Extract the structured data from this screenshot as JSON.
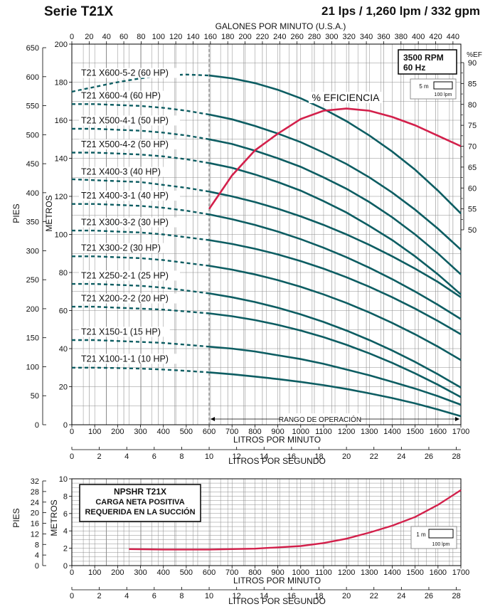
{
  "header": {
    "series": "Serie T21X",
    "rating": "21 lps / 1,260 lpm / 332 gpm"
  },
  "colors": {
    "curve": "#0d5d62",
    "efficiency": "#d3204b",
    "grid": "#8c8c8c"
  },
  "chart_data": [
    {
      "type": "line",
      "name": "performance",
      "top_axis_label": "GALONES POR MINUTO (U.S.A.)",
      "top_ticks": [
        "0",
        "20",
        "40",
        "60",
        "80",
        "100",
        "120",
        "140",
        "160",
        "180",
        "200",
        "220",
        "240",
        "260",
        "280",
        "300",
        "320",
        "340",
        "360",
        "380",
        "400",
        "420",
        "440"
      ],
      "xlabel": "LITROS POR MINUTO",
      "x_ticks": [
        "0",
        "100",
        "200",
        "300",
        "400",
        "500",
        "600",
        "700",
        "800",
        "900",
        "1000",
        "1100",
        "1200",
        "1300",
        "1400",
        "1500",
        "1600",
        "1700"
      ],
      "xlabel2": "LITROS POR SEGUNDO",
      "x2_ticks": [
        "0",
        "2",
        "4",
        "6",
        "8",
        "10",
        "12",
        "14",
        "16",
        "18",
        "20",
        "22",
        "24",
        "26",
        "28"
      ],
      "ylabel_left": "PIES",
      "y_pies_ticks": [
        "0",
        "50",
        "100",
        "150",
        "200",
        "250",
        "300",
        "350",
        "400",
        "450",
        "500",
        "550",
        "600",
        "650"
      ],
      "ylabel_metros": "METROS",
      "y_metros_ticks": [
        "0",
        "20",
        "40",
        "60",
        "80",
        "100",
        "120",
        "140",
        "160",
        "180",
        "200"
      ],
      "eff_label": "%EF",
      "eff_ticks": [
        "50",
        "55",
        "60",
        "65",
        "70",
        "75",
        "80",
        "85",
        "90"
      ],
      "xlim": [
        0,
        1700
      ],
      "ylim": [
        0,
        200
      ],
      "operating_range": {
        "label": "RANGO DE OPERACIÓN",
        "from": 600,
        "to": 1700
      },
      "rpm_box": {
        "line1": "3500 RPM",
        "line2": "60 Hz"
      },
      "scale_box": {
        "top": "5 m",
        "bottom": "100 lpm"
      },
      "efficiency_label": "% EFICIENCIA",
      "series": [
        {
          "name": "T21 X600-5-2 (60 HP)",
          "x": [
            0,
            100,
            200,
            300,
            400,
            500,
            600,
            700,
            800,
            900,
            1000,
            1100,
            1200,
            1300,
            1400,
            1500,
            1600,
            1700
          ],
          "values": [
            175,
            177.5,
            180,
            182,
            183.5,
            184,
            183.5,
            182,
            179.5,
            176,
            171.5,
            166,
            159.5,
            152,
            143.5,
            134,
            123,
            111
          ]
        },
        {
          "name": "T21 X600-4 (60 HP)",
          "x": [
            0,
            100,
            200,
            300,
            400,
            500,
            600,
            700,
            800,
            900,
            1000,
            1100,
            1200,
            1300,
            1400,
            1500,
            1600,
            1700
          ],
          "values": [
            168.5,
            168.5,
            168,
            167.5,
            166.5,
            165,
            163,
            160.5,
            157,
            153,
            148.5,
            143,
            137,
            130,
            122,
            113,
            103,
            92
          ]
        },
        {
          "name": "T21 X500-4-1 (50 HP)",
          "x": [
            0,
            100,
            200,
            300,
            400,
            500,
            600,
            700,
            800,
            900,
            1000,
            1100,
            1200,
            1300,
            1400,
            1500,
            1600,
            1700
          ],
          "values": [
            155.5,
            155.5,
            155,
            154.5,
            153.5,
            152,
            150,
            147.5,
            144,
            140,
            135.5,
            130,
            124,
            117,
            109,
            100,
            90,
            79
          ]
        },
        {
          "name": "T21 X500-4-2 (50 HP)",
          "x": [
            0,
            100,
            200,
            300,
            400,
            500,
            600,
            700,
            800,
            900,
            1000,
            1100,
            1200,
            1300,
            1400,
            1500,
            1600,
            1700
          ],
          "values": [
            143,
            143,
            142.5,
            142,
            141,
            139.5,
            137.5,
            135,
            131.5,
            127.5,
            123,
            117.5,
            111.5,
            104.5,
            97,
            88.5,
            79,
            68.5
          ]
        },
        {
          "name": "T21 X400-3 (40 HP)",
          "x": [
            0,
            100,
            200,
            300,
            400,
            500,
            600,
            700,
            800,
            900,
            1000,
            1100,
            1200,
            1300,
            1400,
            1500,
            1600,
            1700
          ],
          "values": [
            129,
            128.5,
            128,
            127.5,
            126,
            124.5,
            122.5,
            120,
            117,
            113.5,
            109.5,
            105,
            100,
            94.5,
            88.5,
            82,
            75,
            67
          ]
        },
        {
          "name": "T21 X400-3-1 (40 HP)",
          "x": [
            0,
            100,
            200,
            300,
            400,
            500,
            600,
            700,
            800,
            900,
            1000,
            1100,
            1200,
            1300,
            1400,
            1500,
            1600,
            1700
          ],
          "values": [
            116,
            116,
            115.5,
            115,
            114,
            112.5,
            110.5,
            108,
            105,
            101.5,
            97.5,
            93,
            88,
            82.5,
            76.5,
            70,
            63,
            55.5
          ]
        },
        {
          "name": "T21 X300-3-2 (30 HP)",
          "x": [
            0,
            100,
            200,
            300,
            400,
            500,
            600,
            700,
            800,
            900,
            1000,
            1100,
            1200,
            1300,
            1400,
            1500,
            1600,
            1700
          ],
          "values": [
            102,
            102,
            101.5,
            101,
            100,
            98.5,
            97,
            95,
            92.5,
            89.5,
            86,
            82,
            77.5,
            72.5,
            67,
            61,
            54.5,
            47.5
          ]
        },
        {
          "name": "T21 X300-2 (30 HP)",
          "x": [
            0,
            100,
            200,
            300,
            400,
            500,
            600,
            700,
            800,
            900,
            1000,
            1100,
            1200,
            1300,
            1400,
            1500,
            1600,
            1700
          ],
          "values": [
            88.5,
            88.5,
            88,
            87.5,
            86.5,
            85,
            83.5,
            81.5,
            79,
            76,
            72.5,
            68.5,
            64,
            59,
            53.5,
            47.5,
            41,
            34
          ]
        },
        {
          "name": "T21 X250-2-1 (25 HP)",
          "x": [
            0,
            100,
            200,
            300,
            400,
            500,
            600,
            700,
            800,
            900,
            1000,
            1100,
            1200,
            1300,
            1400,
            1500,
            1600,
            1700
          ],
          "values": [
            74,
            74,
            73.5,
            73,
            72,
            70.5,
            69,
            67,
            64.5,
            61.5,
            58,
            54,
            49.5,
            44.5,
            39,
            33,
            26.5,
            19.5
          ]
        },
        {
          "name": "T21 X200-2-2 (20 HP)",
          "x": [
            0,
            100,
            200,
            300,
            400,
            500,
            600,
            700,
            800,
            900,
            1000,
            1100,
            1200,
            1300,
            1400,
            1500,
            1600,
            1700
          ],
          "values": [
            62,
            62,
            61.5,
            61,
            60.5,
            59.5,
            58.5,
            57,
            55,
            52.5,
            49.5,
            46,
            42,
            37.5,
            32.5,
            27,
            21,
            14.5
          ]
        },
        {
          "name": "T21 X150-1 (15 HP)",
          "x": [
            0,
            100,
            200,
            300,
            400,
            500,
            600,
            700,
            800,
            900,
            1000,
            1100,
            1200,
            1300,
            1400,
            1500,
            1600,
            1700
          ],
          "values": [
            44.5,
            44.5,
            44,
            43.5,
            43,
            42,
            41,
            40,
            38.5,
            36.5,
            34.5,
            32,
            29,
            26,
            22.5,
            19,
            15,
            10.5
          ]
        },
        {
          "name": "T21 X100-1-1 (10 HP)",
          "x": [
            0,
            100,
            200,
            300,
            400,
            500,
            600,
            700,
            800,
            900,
            1000,
            1100,
            1200,
            1300,
            1400,
            1500,
            1600,
            1700
          ],
          "values": [
            30,
            30,
            29.8,
            29.5,
            29,
            28.3,
            27.5,
            26.5,
            25.3,
            24,
            22.5,
            20.8,
            18.8,
            16.5,
            14,
            11.2,
            8,
            4.5
          ]
        }
      ],
      "efficiency": {
        "x": [
          600,
          700,
          800,
          900,
          1000,
          1100,
          1200,
          1300,
          1400,
          1500,
          1600,
          1700
        ],
        "values": [
          55,
          63,
          69,
          73,
          76.5,
          78.5,
          79,
          78.5,
          77,
          75,
          72.5,
          70
        ]
      }
    },
    {
      "type": "line",
      "name": "npshr",
      "box_title": "NPSHR T21X",
      "box_line1": "CARGA NETA POSITIVA",
      "box_line2": "REQUERIDA EN LA SUCCIÓN",
      "ylabel_left": "PIES",
      "y_pies_ticks": [
        "0",
        "4",
        "8",
        "12",
        "16",
        "20",
        "24",
        "28",
        "32"
      ],
      "ylabel_metros": "METROS",
      "y_metros_ticks": [
        "0",
        "2",
        "4",
        "6",
        "8",
        "10"
      ],
      "xlabel": "LITROS POR MINUTO",
      "x_ticks": [
        "0",
        "100",
        "200",
        "300",
        "400",
        "500",
        "600",
        "700",
        "800",
        "900",
        "1000",
        "1100",
        "1200",
        "1300",
        "1400",
        "1500",
        "1600",
        "1700"
      ],
      "xlabel2": "LITROS POR SEGUNDO",
      "x2_ticks": [
        "0",
        "2",
        "4",
        "6",
        "8",
        "10",
        "12",
        "14",
        "16",
        "18",
        "20",
        "22",
        "24",
        "26",
        "28"
      ],
      "xlim": [
        0,
        1700
      ],
      "ylim": [
        0,
        10
      ],
      "scale_box": {
        "top": "1 m",
        "bottom": "100 lpm"
      },
      "series": [
        {
          "name": "NPSHR",
          "x": [
            250,
            400,
            600,
            800,
            1000,
            1100,
            1200,
            1300,
            1400,
            1500,
            1600,
            1700
          ],
          "values": [
            1.9,
            1.85,
            1.85,
            1.95,
            2.25,
            2.6,
            3.1,
            3.8,
            4.6,
            5.6,
            7.0,
            8.7
          ]
        }
      ]
    }
  ]
}
